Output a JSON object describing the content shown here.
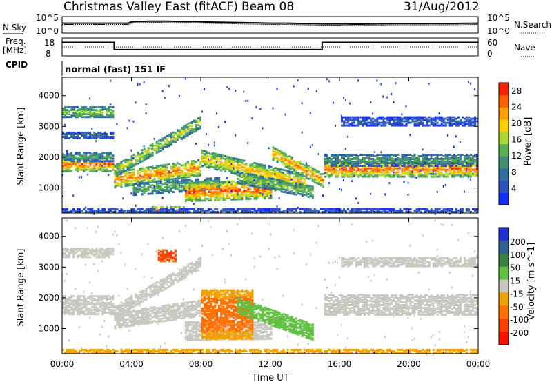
{
  "header": {
    "station": "Christmas Valley East (fitACF)",
    "beam": "Beam 08",
    "date": "31/Aug/2012"
  },
  "noise_panel": {
    "left_label": "N.Sky",
    "right_label": "N.Search",
    "tick_top": "10^5",
    "tick_bottom": "10^0"
  },
  "freq_panel": {
    "left_label_1": "Freq.",
    "left_label_2": "[MHz]",
    "right_label": "Nave",
    "left_ticks": [
      "18",
      "8"
    ],
    "right_ticks": [
      "60",
      "0"
    ]
  },
  "cpid": {
    "label": "CPID",
    "mode": "normal (fast) 151 IF"
  },
  "xaxis": {
    "label": "Time UT",
    "ticks": [
      "00:00",
      "04:00",
      "08:00",
      "12:00",
      "16:00",
      "20:00",
      "00:00"
    ]
  },
  "colors": {
    "power": [
      "#1030ff",
      "#3050c0",
      "#2f6fa0",
      "#3f9070",
      "#59b050",
      "#b0d830",
      "#ffd000",
      "#ffa000",
      "#ff6000",
      "#ff2000"
    ],
    "velocity": [
      "#2030d0",
      "#306090",
      "#3a8040",
      "#60c040",
      "#c8c8c0",
      "#f0a000",
      "#ff7000",
      "#ff4000",
      "#ff1000"
    ]
  },
  "chart_data": [
    {
      "type": "line",
      "panel": "noise",
      "series": [
        {
          "values": [
            3.0,
            3.0,
            3.0,
            3.0,
            3.0,
            3.0,
            3.4,
            3.6,
            3.6,
            3.5,
            3.4,
            3.3,
            3.2,
            3.1,
            3.0,
            3.0,
            2.9,
            2.8,
            2.8,
            2.7,
            2.8,
            2.9,
            2.9,
            2.9,
            3.0
          ]
        },
        {
          "values": [
            2.6,
            2.6,
            2.6,
            2.6,
            2.6,
            2.6,
            3.0,
            3.2,
            3.2,
            3.1,
            3.0,
            2.9,
            2.8,
            2.7,
            2.6,
            2.6,
            2.5,
            2.4,
            2.4,
            2.3,
            2.4,
            2.5,
            2.5,
            2.5,
            2.6
          ]
        }
      ],
      "x_hours": [
        0,
        1,
        2,
        3,
        3.5,
        3.8,
        4,
        5,
        6,
        7,
        8,
        9,
        10,
        11,
        12,
        13,
        14,
        15,
        16,
        17,
        18,
        19,
        20,
        22,
        24
      ],
      "ylim": [
        0,
        5
      ],
      "ylabel": "N.Sky"
    },
    {
      "type": "line",
      "panel": "frequency",
      "x_hours": [
        0,
        3.0,
        3.0,
        15.0,
        15.0,
        24
      ],
      "values": [
        15.5,
        15.5,
        11.5,
        11.5,
        15.5,
        15.5
      ],
      "nave_values": [
        30,
        30,
        30,
        30,
        30,
        30
      ],
      "ylim": [
        8,
        18
      ],
      "ylabel": "Freq. [MHz]"
    },
    {
      "type": "heatmap",
      "panel": "power",
      "xlabel": "Time UT",
      "ylabel": "Slant Range [km]",
      "xlim_hours": [
        0,
        24
      ],
      "ylim": [
        180,
        4600
      ],
      "yticks": [
        1000,
        2000,
        3000,
        4000
      ],
      "colorbar": {
        "label": "Power [dB]",
        "ticks": [
          4,
          8,
          12,
          16,
          20,
          24,
          28
        ],
        "range": [
          0,
          30
        ]
      },
      "bands": [
        {
          "t": [
            0,
            3.0
          ],
          "range_center": [
            1800,
            1800
          ],
          "width": 220,
          "value": 26
        },
        {
          "t": [
            0,
            3.0
          ],
          "range_center": [
            2050,
            2050
          ],
          "width": 150,
          "value": 12
        },
        {
          "t": [
            0,
            3.0
          ],
          "range_center": [
            3500,
            3500
          ],
          "width": 160,
          "value": 16
        },
        {
          "t": [
            0,
            3.0
          ],
          "range_center": [
            2750,
            2750
          ],
          "width": 100,
          "value": 8
        },
        {
          "t": [
            3.0,
            8.0
          ],
          "range_center": [
            1300,
            1700
          ],
          "width": 250,
          "value": 25
        },
        {
          "t": [
            3.0,
            8.0
          ],
          "range_center": [
            1600,
            3200
          ],
          "width": 200,
          "value": 18
        },
        {
          "t": [
            4.0,
            9.0
          ],
          "range_center": [
            1000,
            1200
          ],
          "width": 200,
          "value": 14
        },
        {
          "t": [
            7.0,
            12.0
          ],
          "range_center": [
            900,
            1000
          ],
          "width": 300,
          "value": 27
        },
        {
          "t": [
            8.0,
            14.0
          ],
          "range_center": [
            2000,
            1200
          ],
          "width": 250,
          "value": 22
        },
        {
          "t": [
            10.0,
            14.5
          ],
          "range_center": [
            1400,
            900
          ],
          "width": 200,
          "value": 16
        },
        {
          "t": [
            12.0,
            15.0
          ],
          "range_center": [
            2200,
            1300
          ],
          "width": 220,
          "value": 24
        },
        {
          "t": [
            15.0,
            24.0
          ],
          "range_center": [
            1650,
            1650
          ],
          "width": 250,
          "value": 26
        },
        {
          "t": [
            15.0,
            24.0
          ],
          "range_center": [
            1950,
            1950
          ],
          "width": 200,
          "value": 12
        },
        {
          "t": [
            16.0,
            24.0
          ],
          "range_center": [
            3200,
            3200
          ],
          "width": 140,
          "value": 6
        },
        {
          "t": [
            5.0,
            7.0
          ],
          "range_center": [
            300,
            300
          ],
          "width": 120,
          "value": 28
        },
        {
          "t": [
            0,
            24.0
          ],
          "range_center": [
            260,
            260
          ],
          "width": 100,
          "value": 6
        }
      ]
    },
    {
      "type": "heatmap",
      "panel": "velocity",
      "xlabel": "Time UT",
      "ylabel": "Slant Range [km]",
      "xlim_hours": [
        0,
        24
      ],
      "ylim": [
        180,
        4600
      ],
      "yticks": [
        1000,
        2000,
        3000,
        4000
      ],
      "colorbar": {
        "label": "Velocity [m s^-1]",
        "ticks": [
          200,
          100,
          50,
          15,
          -15,
          -50,
          -100,
          -200
        ]
      },
      "bands": [
        {
          "t": [
            0,
            3.0
          ],
          "range_center": [
            1800,
            1800
          ],
          "width": 300,
          "value": 0
        },
        {
          "t": [
            0,
            3.0
          ],
          "range_center": [
            3500,
            3500
          ],
          "width": 140,
          "value": 0
        },
        {
          "t": [
            3.0,
            8.0
          ],
          "range_center": [
            1300,
            1700
          ],
          "width": 250,
          "value": 0
        },
        {
          "t": [
            3.0,
            8.0
          ],
          "range_center": [
            1600,
            3200
          ],
          "width": 200,
          "value": 0
        },
        {
          "t": [
            7.0,
            12.0
          ],
          "range_center": [
            950,
            1000
          ],
          "width": 300,
          "value": 0
        },
        {
          "t": [
            8.0,
            11.0
          ],
          "range_center": [
            1500,
            1500
          ],
          "width": 800,
          "value": -80
        },
        {
          "t": [
            10.0,
            14.5
          ],
          "range_center": [
            1800,
            900
          ],
          "width": 250,
          "value": 40
        },
        {
          "t": [
            15.0,
            24.0
          ],
          "range_center": [
            1800,
            1800
          ],
          "width": 320,
          "value": 0
        },
        {
          "t": [
            16.0,
            24.0
          ],
          "range_center": [
            3200,
            3200
          ],
          "width": 140,
          "value": 0
        },
        {
          "t": [
            5.5,
            6.5
          ],
          "range_center": [
            3400,
            3400
          ],
          "width": 180,
          "value": -180
        },
        {
          "t": [
            0,
            24.0
          ],
          "range_center": [
            260,
            260
          ],
          "width": 100,
          "value": -40
        }
      ]
    }
  ]
}
